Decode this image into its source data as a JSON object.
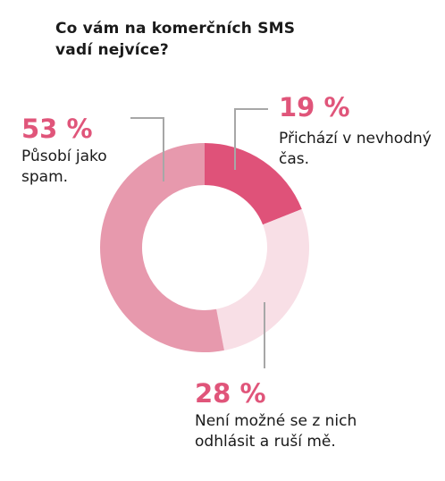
{
  "title": "Co vám na komerčních SMS vadí nejvíce?",
  "chart_data": {
    "type": "pie",
    "title": "Co vám na komerčních SMS vadí nejvíce?",
    "slices": [
      {
        "value": 19,
        "percent_label": "19 %",
        "label": "Přichází v nevhodný čas.",
        "color": "#df5279"
      },
      {
        "value": 28,
        "percent_label": "28 %",
        "label": "Není možné se z nich odhlásit a ruší mě.",
        "color": "#f8dfe6"
      },
      {
        "value": 53,
        "percent_label": "53 %",
        "label": "Působí jako spam.",
        "color": "#e799ad"
      }
    ],
    "donut": true,
    "leader_line_color": "#a7a7a7",
    "accent_color": "#e0557a"
  }
}
